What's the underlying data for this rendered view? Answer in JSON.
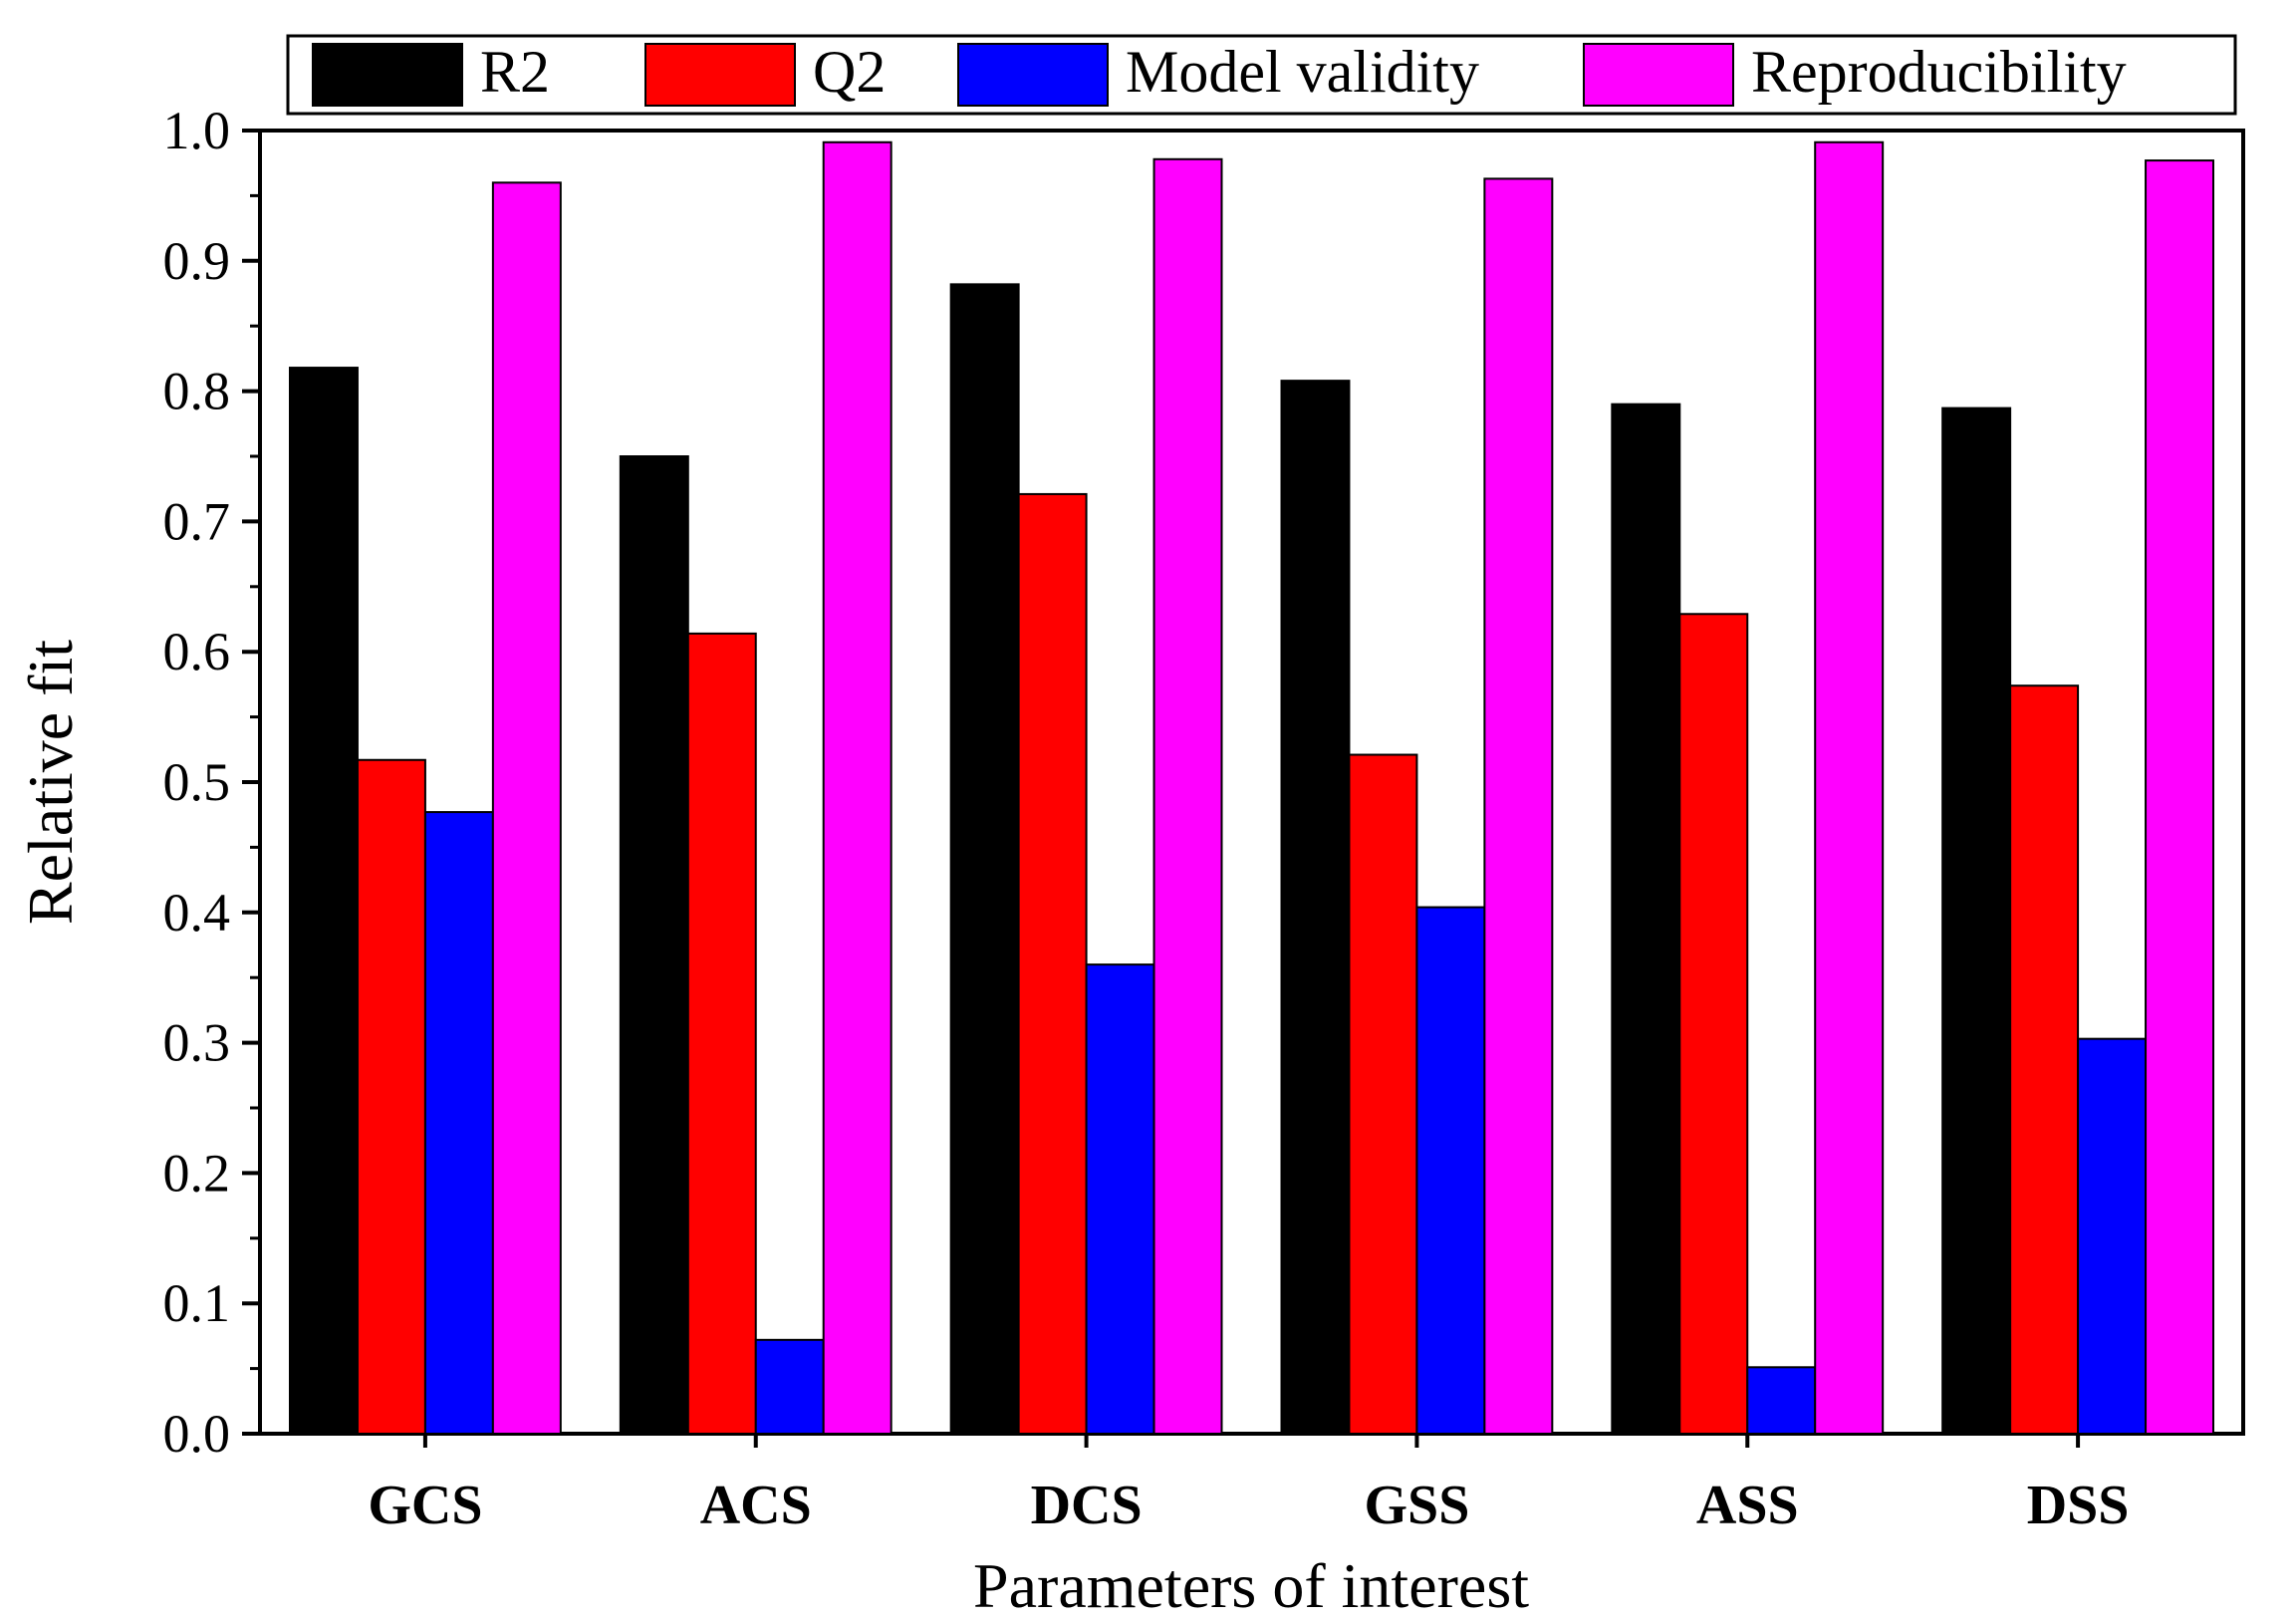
{
  "chart_data": {
    "type": "bar",
    "title": "",
    "xlabel": "Parameters of interest",
    "ylabel": "Relative fit",
    "categories": [
      "GCS",
      "ACS",
      "DCS",
      "GSS",
      "ASS",
      "DSS"
    ],
    "series": [
      {
        "name": "R2",
        "color": "#000000",
        "values": [
          0.818,
          0.75,
          0.882,
          0.808,
          0.79,
          0.787
        ]
      },
      {
        "name": "Q2",
        "color": "#ff0000",
        "values": [
          0.517,
          0.614,
          0.721,
          0.521,
          0.629,
          0.574
        ]
      },
      {
        "name": "Model validity",
        "color": "#0000ff",
        "values": [
          0.477,
          0.072,
          0.36,
          0.404,
          0.051,
          0.303
        ]
      },
      {
        "name": "Reproducibility",
        "color": "#ff00ff",
        "values": [
          0.96,
          0.991,
          0.978,
          0.963,
          0.991,
          0.977
        ]
      }
    ],
    "ylim": [
      0.0,
      1.0
    ],
    "yticks": [
      "0.0",
      "0.1",
      "0.2",
      "0.3",
      "0.4",
      "0.5",
      "0.6",
      "0.7",
      "0.8",
      "0.9",
      "1.0"
    ],
    "legend_position": "top",
    "grid": false
  }
}
